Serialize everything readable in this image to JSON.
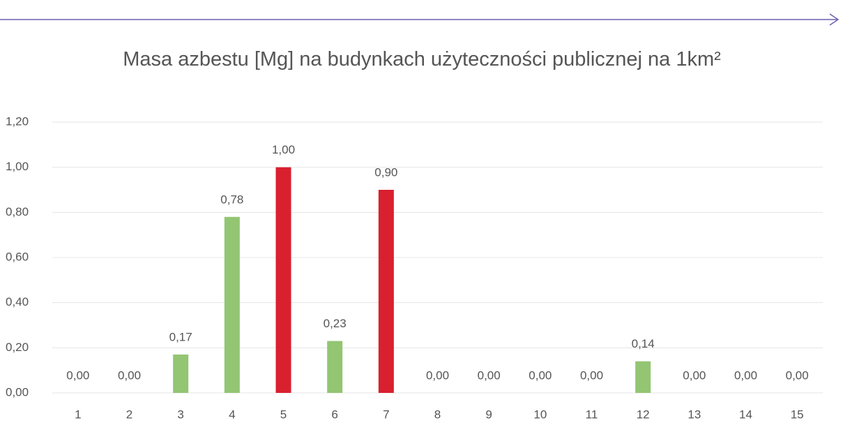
{
  "chart_data": {
    "type": "bar",
    "title": "Masa azbestu [Mg] na budynkach użyteczności publicznej na 1km²",
    "categories": [
      "1",
      "2",
      "3",
      "4",
      "5",
      "6",
      "7",
      "8",
      "9",
      "10",
      "11",
      "12",
      "13",
      "14",
      "15"
    ],
    "values": [
      0,
      0,
      0.17,
      0.78,
      1.0,
      0.23,
      0.9,
      0,
      0,
      0,
      0,
      0.14,
      0,
      0,
      0
    ],
    "value_labels": [
      "0,00",
      "0,00",
      "0,17",
      "0,78",
      "1,00",
      "0,23",
      "0,90",
      "0,00",
      "0,00",
      "0,00",
      "0,00",
      "0,14",
      "0,00",
      "0,00",
      "0,00"
    ],
    "colors": [
      "#93c572",
      "#93c572",
      "#93c572",
      "#93c572",
      "#d9202f",
      "#93c572",
      "#d9202f",
      "#93c572",
      "#93c572",
      "#93c572",
      "#93c572",
      "#93c572",
      "#93c572",
      "#93c572",
      "#93c572"
    ],
    "ylim": [
      0,
      1.2
    ],
    "yticks": [
      {
        "value": 0,
        "label": "0,00"
      },
      {
        "value": 0.2,
        "label": "0,20"
      },
      {
        "value": 0.4,
        "label": "0,40"
      },
      {
        "value": 0.6,
        "label": "0,60"
      },
      {
        "value": 0.8,
        "label": "0,80"
      },
      {
        "value": 1.0,
        "label": "1,00"
      },
      {
        "value": 1.2,
        "label": "1,20"
      }
    ],
    "grid": true
  }
}
